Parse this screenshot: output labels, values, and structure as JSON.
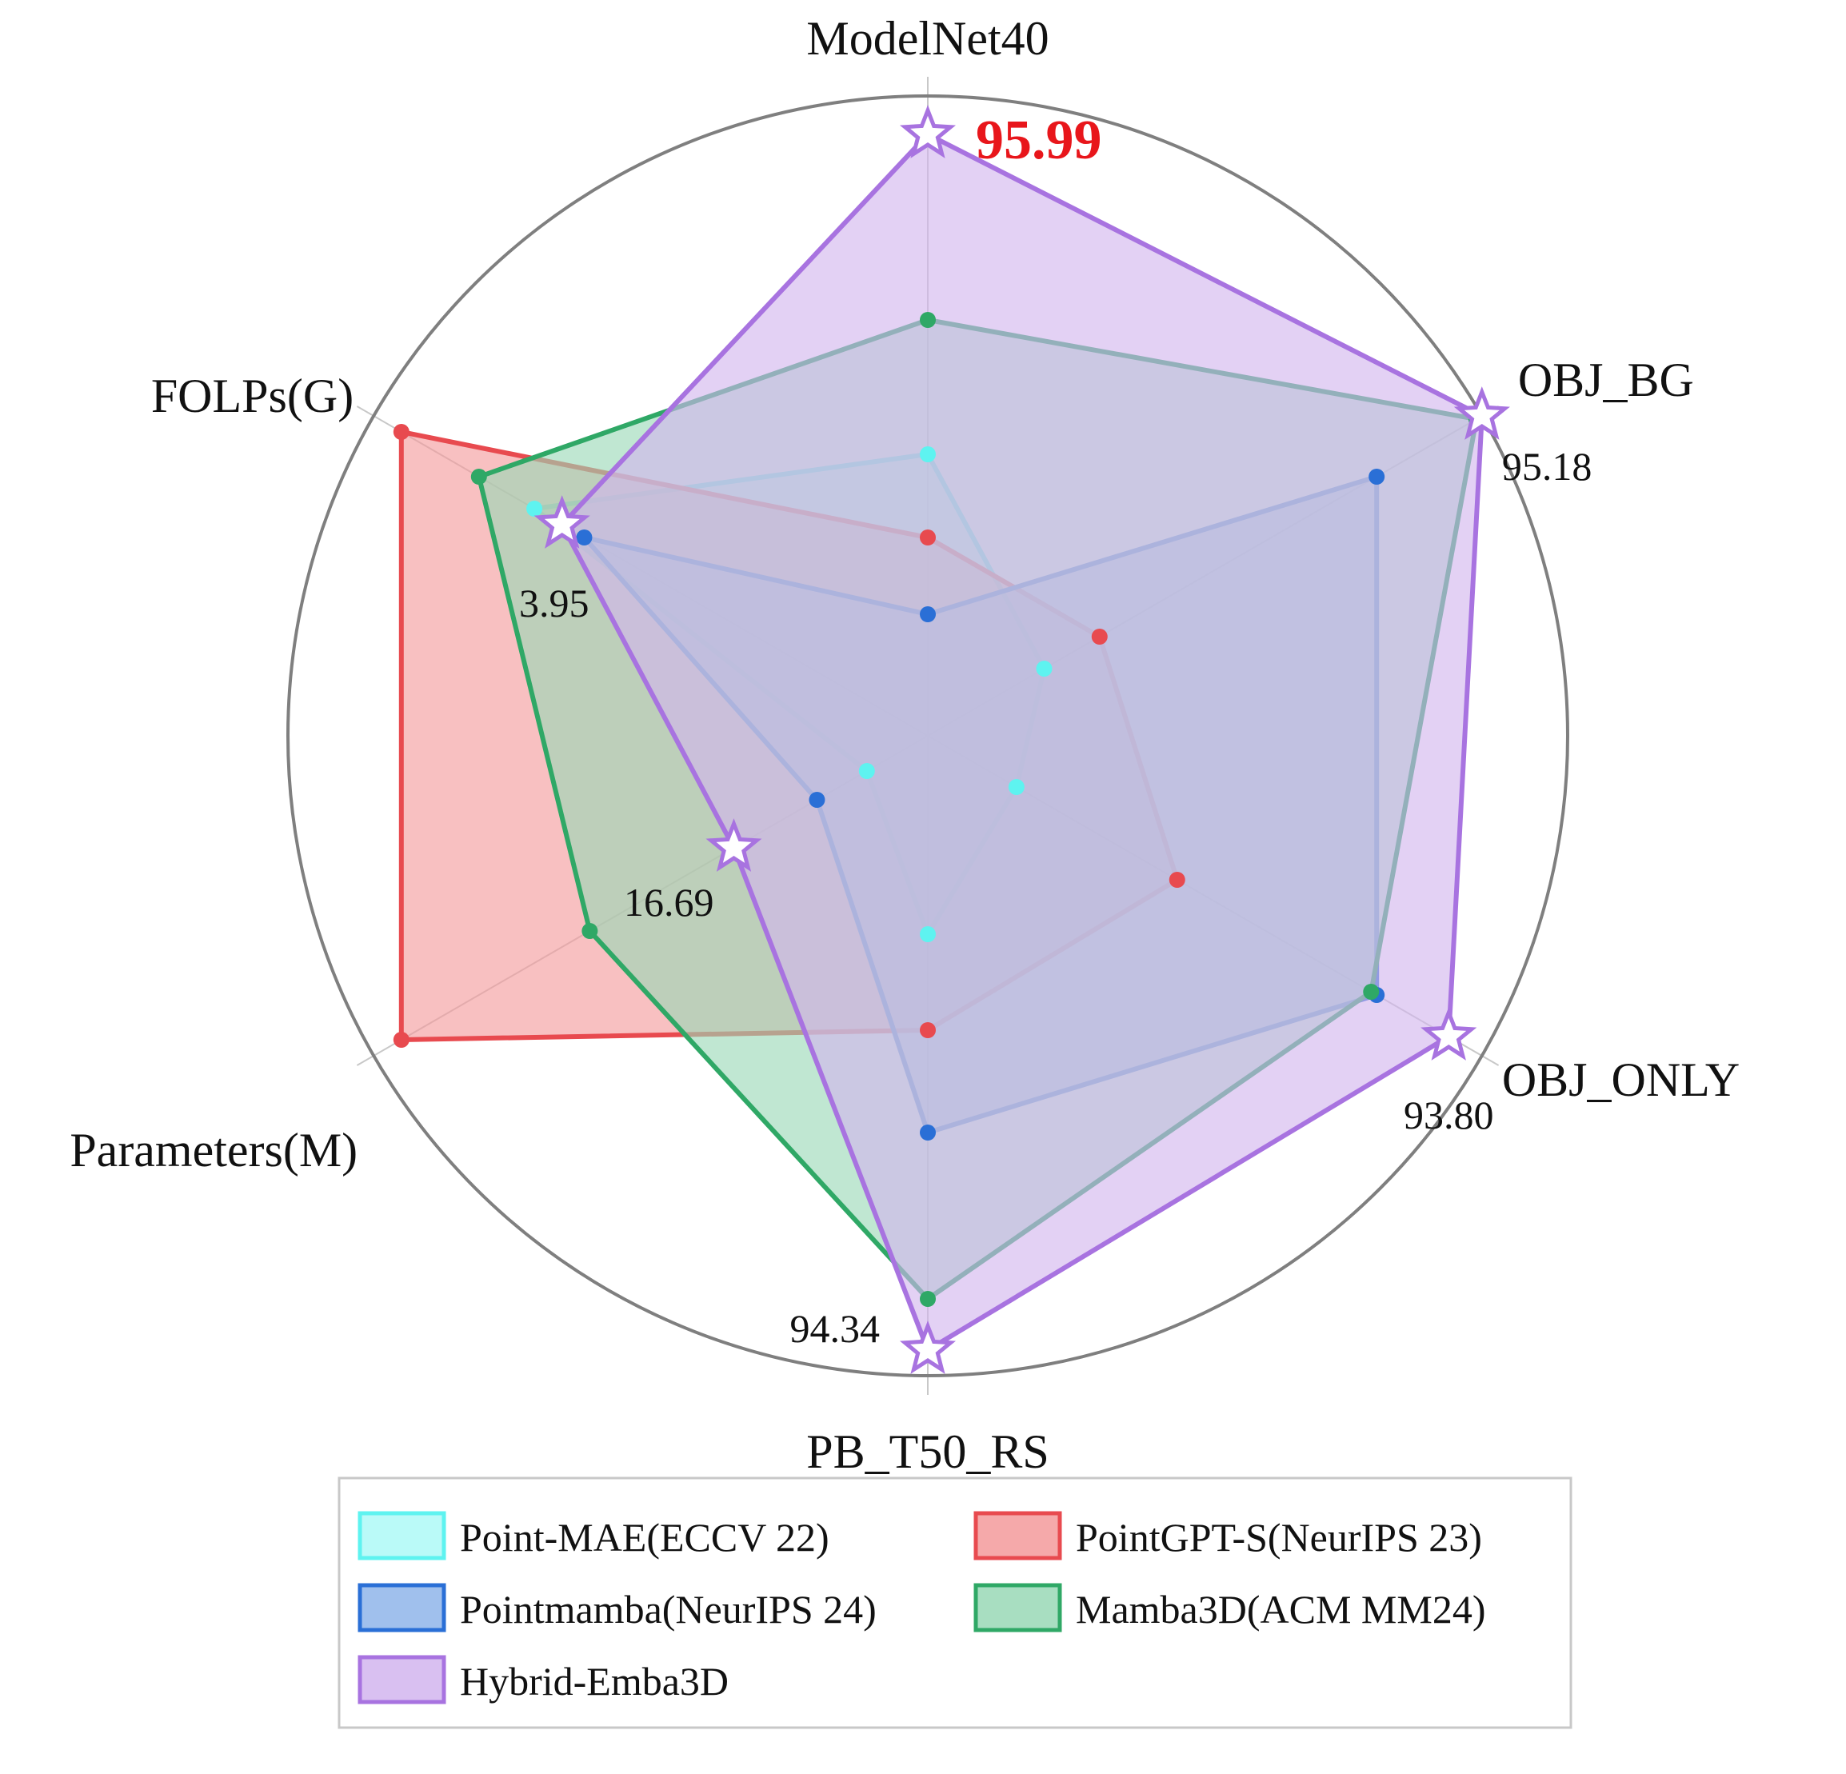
{
  "chart_data": {
    "type": "radar",
    "axes": [
      "ModelNet40",
      "OBJ_BG",
      "OBJ_ONLY",
      "PB_T50_RS",
      "Parameters(M)",
      "FOLPs(G)"
    ],
    "scale": "each axis normalized 0–1 (centre = 0, outer ring = 1)",
    "series": [
      {
        "name": "Point-MAE(ECCV 22)",
        "color": "#5ef3f0",
        "fill": "#aef9f7",
        "values": [
          0.44,
          0.21,
          0.16,
          0.31,
          0.11,
          0.71
        ]
      },
      {
        "name": "PointGPT-S(NeurIPS 23)",
        "color": "#e84a4f",
        "fill": "#f39a9b",
        "values": [
          0.31,
          0.31,
          0.45,
          0.46,
          0.95,
          0.95
        ]
      },
      {
        "name": "Pointmamba(NeurIPS 24)",
        "color": "#2a6fd6",
        "fill": "#8fb5ea",
        "values": [
          0.19,
          0.81,
          0.81,
          0.62,
          0.2,
          0.62
        ]
      },
      {
        "name": "Mamba3D(ACM MM24)",
        "color": "#2fa866",
        "fill": "#99d8b6",
        "values": [
          0.65,
          0.99,
          0.8,
          0.88,
          0.61,
          0.81
        ]
      },
      {
        "name": "Hybrid-Emba3D",
        "color": "#a873e0",
        "fill": "#d2b5ee",
        "values": [
          0.94,
          1.0,
          0.94,
          0.96,
          0.35,
          0.66
        ],
        "star_markers": true
      }
    ],
    "value_labels": [
      {
        "axis": "ModelNet40",
        "text": "95.99",
        "highlight": true
      },
      {
        "axis": "OBJ_BG",
        "text": "95.18"
      },
      {
        "axis": "OBJ_ONLY",
        "text": "93.80"
      },
      {
        "axis": "PB_T50_RS",
        "text": "94.34"
      },
      {
        "axis": "Parameters(M)",
        "text": "16.69"
      },
      {
        "axis": "FOLPs(G)",
        "text": "3.95"
      }
    ],
    "legend_position": "bottom"
  }
}
